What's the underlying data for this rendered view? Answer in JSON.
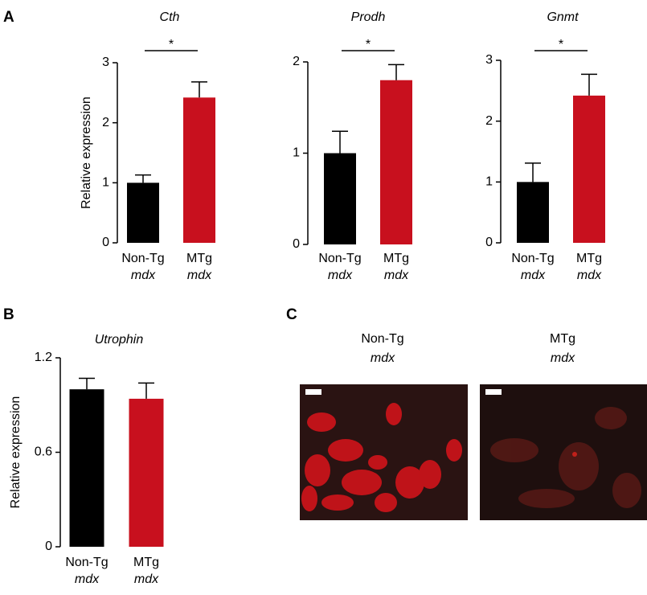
{
  "chart_data": [
    {
      "type": "bar",
      "panel": "A",
      "title": "Cth",
      "ylabel": "Relative expression",
      "categories": [
        "Non-Tg",
        "MTg"
      ],
      "category_sublabels": [
        "mdx",
        "mdx"
      ],
      "values": [
        1.0,
        2.42
      ],
      "errors": [
        0.13,
        0.26
      ],
      "colors": [
        "#000000",
        "#c8101e"
      ],
      "ylim": [
        0,
        3
      ],
      "yticks": [
        0,
        1,
        2,
        3
      ],
      "significance": "*"
    },
    {
      "type": "bar",
      "title": "Prodh",
      "categories": [
        "Non-Tg",
        "MTg"
      ],
      "category_sublabels": [
        "mdx",
        "mdx"
      ],
      "values": [
        1.0,
        1.8
      ],
      "errors": [
        0.24,
        0.17
      ],
      "colors": [
        "#000000",
        "#c8101e"
      ],
      "ylim": [
        0,
        2
      ],
      "yticks": [
        0,
        1,
        2
      ],
      "significance": "*"
    },
    {
      "type": "bar",
      "title": "Gnmt",
      "categories": [
        "Non-Tg",
        "MTg"
      ],
      "category_sublabels": [
        "mdx",
        "mdx"
      ],
      "values": [
        1.0,
        2.42
      ],
      "errors": [
        0.31,
        0.35
      ],
      "colors": [
        "#000000",
        "#c8101e"
      ],
      "ylim": [
        0,
        3
      ],
      "yticks": [
        0,
        1,
        2,
        3
      ],
      "significance": "*"
    },
    {
      "type": "bar",
      "panel": "B",
      "title": "Utrophin",
      "ylabel": "Relative expression",
      "categories": [
        "Non-Tg",
        "MTg"
      ],
      "category_sublabels": [
        "mdx",
        "mdx"
      ],
      "values": [
        1.0,
        0.94
      ],
      "errors": [
        0.07,
        0.1
      ],
      "colors": [
        "#000000",
        "#c8101e"
      ],
      "ylim": [
        0,
        1.2
      ],
      "yticks": [
        0,
        0.6,
        1.2
      ]
    }
  ],
  "panel_c": {
    "label": "C",
    "images": [
      {
        "title": "Non-Tg",
        "subtitle": "mdx"
      },
      {
        "title": "MTg",
        "subtitle": "mdx"
      }
    ]
  }
}
